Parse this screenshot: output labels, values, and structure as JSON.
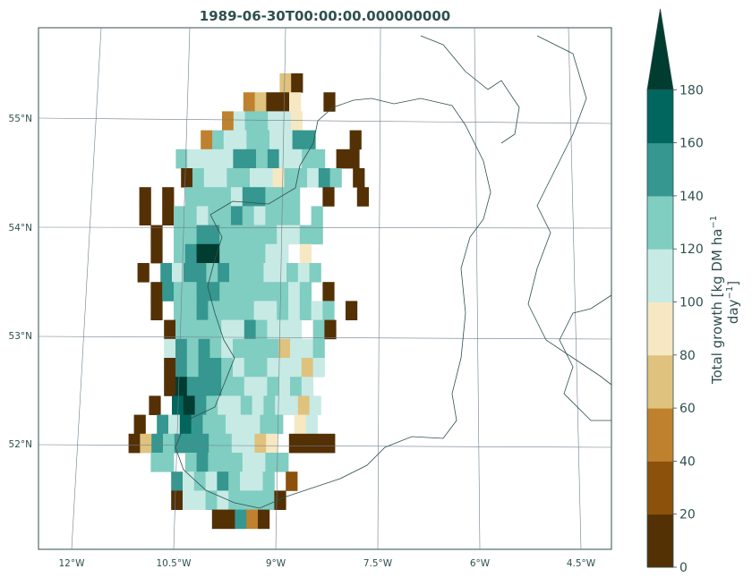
{
  "chart_data": {
    "type": "heatmap",
    "title": "1989-06-30T00:00:00.000000000",
    "x_ticks": [
      "12°W",
      "10.5°W",
      "9°W",
      "7.5°W",
      "6°W",
      "4.5°W"
    ],
    "y_ticks": [
      "55°N",
      "54°N",
      "53°N",
      "52°N"
    ],
    "colorbar": {
      "label_line1": "Total growth [kg DM ha",
      "label_sup1": "−1",
      "label_line2": "day",
      "label_sup2": "−1",
      "label_end": "]",
      "ticks": [
        "0",
        "20",
        "40",
        "60",
        "80",
        "100",
        "120",
        "140",
        "160",
        "180"
      ],
      "bounds": [
        0,
        20,
        40,
        60,
        80,
        100,
        120,
        140,
        160,
        180
      ],
      "colors": [
        "#543005",
        "#8c510a",
        "#bf812d",
        "#dfc27d",
        "#f6e8c3",
        "#c7eae5",
        "#80cdc1",
        "#35978f",
        "#01665e",
        "#003c30"
      ],
      "extend": "max"
    },
    "grid": true,
    "notes_gridlines_and_coastline": "map projection with graticule",
    "rows": [
      "........30......",
      "......23004..0..",
      ".....2566554...",
      "....2655665577...0.",
      "...6555577675566.00.",
      "....06556655466576.0",
      "..0.0.6666577666..0..0",
      "..0.066566765666.6.",
      "...0.6677666665566.",
      "...0.6799666655.4.",
      "..0.75776766655656.",
      "...07667766666656.0",
      "...0.66766665565656.0",
      "....066665576555.60.",
      "....57676566663556.",
      "....07677656655535.",
      "....0977766556565.",
      "...0.8976556565535.",
      "..0.75876655566.45..",
      "..0376777665534.0000",
      "...66.676665566....",
      "....756576556.1",
      "....0556566660..",
      "......00720.."
    ]
  }
}
